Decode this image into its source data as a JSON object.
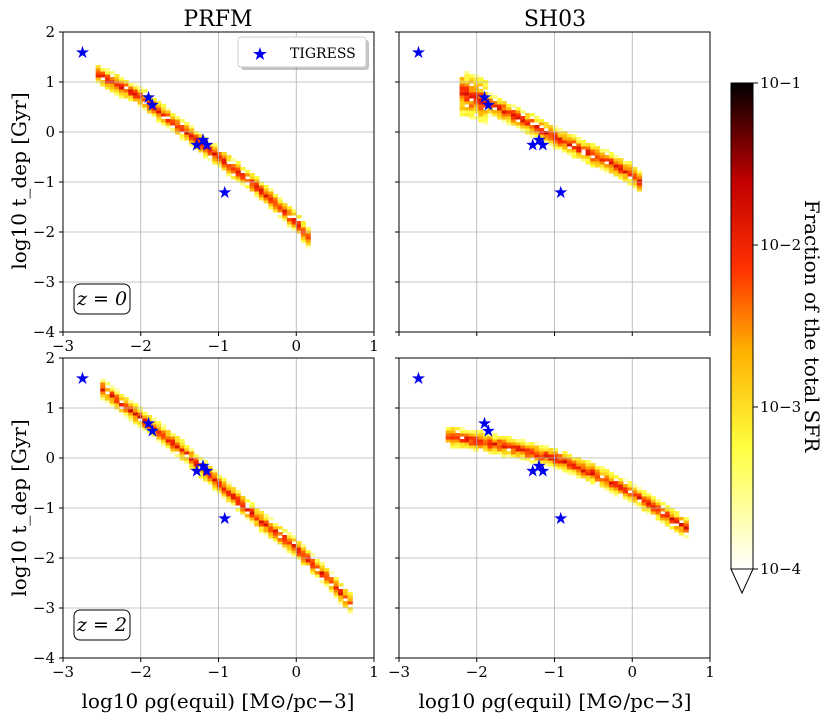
{
  "colors": {
    "star": "#0000ee",
    "grid": "#b0b0b0",
    "colormap": "afmhot_r"
  },
  "chart_data": [
    {
      "type": "heatmap",
      "panel": "top-left",
      "title": "PRFM",
      "xlabel": "",
      "ylabel": "log10 t_dep [Gyr]",
      "xlim": [
        -3,
        1
      ],
      "ylim": [
        -4,
        2
      ],
      "xticks": [
        "−3",
        "−2",
        "−1",
        "0",
        "1"
      ],
      "yticks": [
        "2",
        "1",
        "0",
        "−1",
        "−2",
        "−3",
        "−4"
      ],
      "redshift_label": "z = 0",
      "legend": {
        "label": "TIGRESS",
        "position": "top-right"
      },
      "ridge": {
        "x": [
          -2.6,
          -2.0,
          -1.5,
          -1.0,
          -0.5,
          0.0,
          0.2
        ],
        "y": [
          1.2,
          0.7,
          0.1,
          -0.5,
          -1.1,
          -1.8,
          -2.2
        ]
      },
      "scatter": {
        "name": "TIGRESS",
        "x": [
          -2.75,
          -1.9,
          -1.85,
          -1.28,
          -1.2,
          -1.15,
          -0.92
        ],
        "y": [
          1.6,
          0.7,
          0.55,
          -0.25,
          -0.15,
          -0.25,
          -1.2
        ]
      }
    },
    {
      "type": "heatmap",
      "panel": "top-right",
      "title": "SH03",
      "xlabel": "",
      "ylabel": "",
      "xlim": [
        -3,
        1
      ],
      "ylim": [
        -4,
        2
      ],
      "redshift_label": "",
      "ridge": {
        "x": [
          -2.2,
          -1.8,
          -1.3,
          -0.8,
          -0.3,
          0.0,
          0.1
        ],
        "y": [
          0.8,
          0.55,
          0.15,
          -0.25,
          -0.6,
          -0.85,
          -1.0
        ]
      },
      "scatter": {
        "name": "TIGRESS",
        "x": [
          -2.75,
          -1.9,
          -1.85,
          -1.28,
          -1.2,
          -1.15,
          -0.92
        ],
        "y": [
          1.6,
          0.7,
          0.55,
          -0.25,
          -0.15,
          -0.25,
          -1.2
        ]
      }
    },
    {
      "type": "heatmap",
      "panel": "bottom-left",
      "title": "",
      "xlabel": "log10 ρg(equil) [M⊙/pc−3]",
      "ylabel": "log10 t_dep [Gyr]",
      "xlim": [
        -3,
        1
      ],
      "ylim": [
        -4,
        2
      ],
      "xticks": [
        "−3",
        "−2",
        "−1",
        "0",
        "1"
      ],
      "yticks": [
        "2",
        "1",
        "0",
        "−1",
        "−2",
        "−3",
        "−4"
      ],
      "redshift_label": "z = 2",
      "ridge": {
        "x": [
          -2.5,
          -2.0,
          -1.5,
          -1.0,
          -0.5,
          0.0,
          0.4,
          0.75
        ],
        "y": [
          1.4,
          0.8,
          0.2,
          -0.5,
          -1.2,
          -1.8,
          -2.4,
          -3.0
        ]
      },
      "scatter": {
        "name": "TIGRESS",
        "x": [
          -2.75,
          -1.9,
          -1.85,
          -1.28,
          -1.2,
          -1.15,
          -0.92
        ],
        "y": [
          1.6,
          0.7,
          0.55,
          -0.25,
          -0.15,
          -0.25,
          -1.2
        ]
      }
    },
    {
      "type": "heatmap",
      "panel": "bottom-right",
      "title": "",
      "xlabel": "log10 ρg(equil) [M⊙/pc−3]",
      "ylabel": "",
      "xlim": [
        -3,
        1
      ],
      "ylim": [
        -4,
        2
      ],
      "xticks": [
        "−3",
        "−2",
        "−1",
        "0",
        "1"
      ],
      "redshift_label": "",
      "ridge": {
        "x": [
          -2.4,
          -2.0,
          -1.5,
          -1.0,
          -0.5,
          0.0,
          0.5,
          0.7
        ],
        "y": [
          0.45,
          0.35,
          0.2,
          0.0,
          -0.3,
          -0.7,
          -1.2,
          -1.4
        ]
      },
      "scatter": {
        "name": "TIGRESS",
        "x": [
          -2.75,
          -1.9,
          -1.85,
          -1.28,
          -1.2,
          -1.15,
          -0.92
        ],
        "y": [
          1.6,
          0.7,
          0.55,
          -0.25,
          -0.15,
          -0.25,
          -1.2
        ]
      }
    }
  ],
  "colorbar": {
    "label": "Fraction of the total SFR",
    "scale": "log",
    "range": [
      0.0001,
      0.1
    ],
    "ticks": [
      "10−1",
      "10−2",
      "10−3",
      "10−4"
    ],
    "extend": "min"
  }
}
